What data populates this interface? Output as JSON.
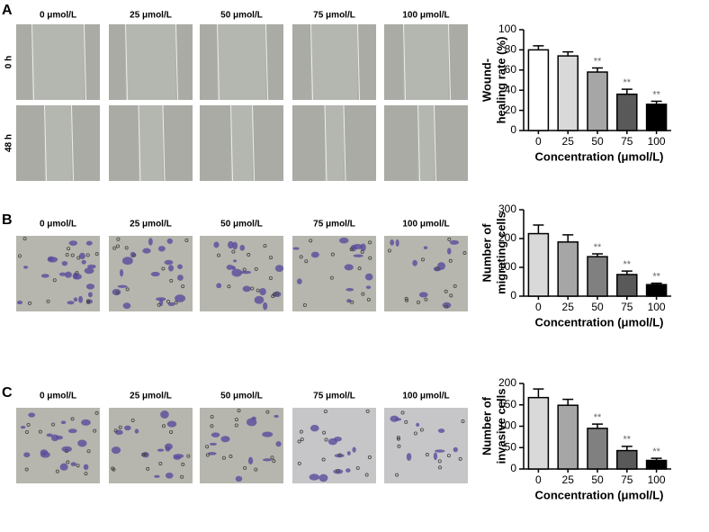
{
  "panels": [
    {
      "letter": "A",
      "columns": [
        "0 μmol/L",
        "25 μmol/L",
        "50 μmol/L",
        "75 μmol/L",
        "100 μmol/L"
      ],
      "rows": [
        "0 h",
        "48 h"
      ]
    },
    {
      "letter": "B",
      "columns": [
        "0 μmol/L",
        "25 μmol/L",
        "50 μmol/L",
        "75 μmol/L",
        "100 μmol/L"
      ]
    },
    {
      "letter": "C",
      "columns": [
        "0 μmol/L",
        "25 μmol/L",
        "50 μmol/L",
        "75 μmol/L",
        "100 μmol/L"
      ]
    }
  ],
  "chart_data": [
    {
      "type": "bar",
      "ylabel": [
        "Wound-",
        "healing rate (%)"
      ],
      "xlabel": "Concentration (μmol/L)",
      "categories": [
        "0",
        "25",
        "50",
        "75",
        "100"
      ],
      "values": [
        80,
        74,
        58,
        36,
        26
      ],
      "errors": [
        4,
        4,
        4,
        5,
        3
      ],
      "significance": [
        null,
        null,
        "**",
        "**",
        "**"
      ],
      "colors": [
        "#ffffff",
        "#d9d9d9",
        "#a6a6a6",
        "#595959",
        "#000000"
      ],
      "ylim": [
        0,
        100
      ],
      "yticks": [
        0,
        20,
        40,
        60,
        80,
        100
      ]
    },
    {
      "type": "bar",
      "ylabel": [
        "Number of",
        "migrating cells"
      ],
      "xlabel": "Concentration (μmol/L)",
      "categories": [
        "0",
        "25",
        "50",
        "75",
        "100"
      ],
      "values": [
        217,
        188,
        137,
        75,
        40
      ],
      "errors": [
        30,
        25,
        10,
        12,
        5
      ],
      "significance": [
        null,
        null,
        "**",
        "**",
        "**"
      ],
      "colors": [
        "#d9d9d9",
        "#a6a6a6",
        "#808080",
        "#595959",
        "#000000"
      ],
      "ylim": [
        0,
        300
      ],
      "yticks": [
        0,
        100,
        200,
        300
      ]
    },
    {
      "type": "bar",
      "ylabel": [
        "Number of",
        "invasive cells"
      ],
      "xlabel": "Concentration (μmol/L)",
      "categories": [
        "0",
        "25",
        "50",
        "75",
        "100"
      ],
      "values": [
        167,
        149,
        95,
        43,
        20
      ],
      "errors": [
        20,
        14,
        10,
        10,
        5
      ],
      "significance": [
        null,
        null,
        "**",
        "**",
        "**"
      ],
      "colors": [
        "#d9d9d9",
        "#a6a6a6",
        "#808080",
        "#595959",
        "#000000"
      ],
      "ylim": [
        0,
        200
      ],
      "yticks": [
        0,
        50,
        100,
        150,
        200
      ]
    }
  ]
}
